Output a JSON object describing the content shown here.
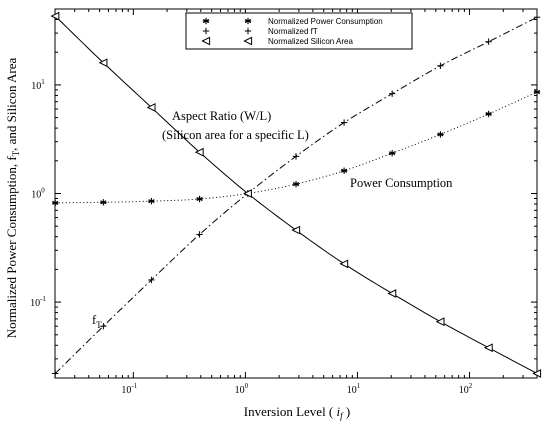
{
  "chart_data": {
    "type": "line",
    "xscale": "log",
    "yscale": "log",
    "xlim": [
      0.02,
      400
    ],
    "ylim": [
      0.02,
      50
    ],
    "xlabel_main": "Inversion Level ( ",
    "xlabel_var": "i",
    "xlabel_sub": "f",
    "xlabel_end": " )",
    "ylabel_main": "Normalized Power Consumption, f",
    "ylabel_sub": "T",
    "ylabel_end": ", and Silicon Area",
    "x_ticks": [
      {
        "value": 0.1,
        "base": "10",
        "exp": "-1"
      },
      {
        "value": 1,
        "base": "10",
        "exp": "0"
      },
      {
        "value": 10,
        "base": "10",
        "exp": "1"
      },
      {
        "value": 100,
        "base": "10",
        "exp": "2"
      }
    ],
    "y_ticks": [
      {
        "value": 0.1,
        "base": "10",
        "exp": "-1"
      },
      {
        "value": 1,
        "base": "10",
        "exp": "0"
      },
      {
        "value": 10,
        "base": "10",
        "exp": "1"
      }
    ],
    "grid": false,
    "legend_position": "top-center",
    "series": [
      {
        "name": "Normalized Power Consumption",
        "marker": "asterisk",
        "line": "dotted",
        "x": [
          0.0201,
          0.054,
          0.145,
          0.39,
          1.05,
          2.83,
          7.6,
          20.4,
          55,
          148,
          400
        ],
        "y": [
          0.82,
          0.83,
          0.85,
          0.89,
          1.0,
          1.22,
          1.62,
          2.35,
          3.5,
          5.4,
          8.6
        ]
      },
      {
        "name": "Normalized fT",
        "marker": "plus",
        "line": "dashdot",
        "x": [
          0.0201,
          0.054,
          0.145,
          0.39,
          1.05,
          2.83,
          7.6,
          20.4,
          55,
          148,
          400
        ],
        "y": [
          0.022,
          0.06,
          0.16,
          0.42,
          1.0,
          2.2,
          4.5,
          8.3,
          15,
          25,
          42
        ]
      },
      {
        "name": "Normalized Silicon Area",
        "marker": "triangle-left",
        "line": "solid",
        "x": [
          0.0201,
          0.054,
          0.145,
          0.39,
          1.05,
          2.83,
          7.6,
          20.4,
          55,
          148,
          400
        ],
        "y": [
          43,
          16,
          6.2,
          2.4,
          1.0,
          0.46,
          0.225,
          0.12,
          0.066,
          0.038,
          0.022
        ]
      }
    ],
    "annotations": {
      "aspect_line1": "Aspect Ratio (W/L)",
      "aspect_line2": "(Silicon area for a specific L)",
      "power": "Power Consumption",
      "ft_main": "f",
      "ft_sub": "T"
    }
  }
}
